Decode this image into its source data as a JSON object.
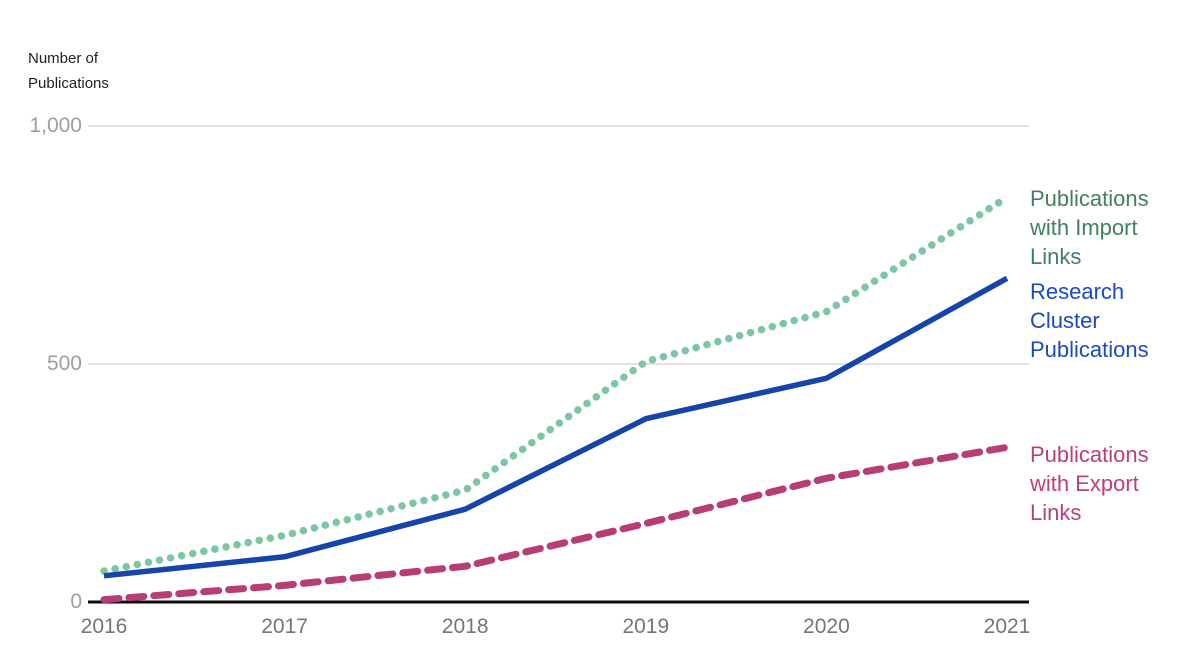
{
  "chart_data": {
    "type": "line",
    "title": "",
    "xlabel": "",
    "ylabel": "Number of Publications",
    "x": [
      "2016",
      "2017",
      "2018",
      "2019",
      "2020",
      "2021"
    ],
    "ylim": [
      0,
      1000
    ],
    "yticks": [
      0,
      500,
      1000
    ],
    "ytick_labels": [
      "0",
      "500",
      "1,000"
    ],
    "grid": "horizontal gridlines at 500 and 1,000; solid black baseline at 0",
    "legend_position": "inline labels at right end of each line",
    "series": [
      {
        "name": "Publications with Import Links",
        "style": "dotted",
        "color": "#7cc7a2",
        "label_color": "#3f8160",
        "values": [
          65,
          140,
          235,
          505,
          610,
          850
        ]
      },
      {
        "name": "Research Cluster Publications",
        "style": "solid",
        "color": "#1544ab",
        "label_color": "#1b49c0",
        "values": [
          55,
          95,
          195,
          385,
          470,
          680
        ]
      },
      {
        "name": "Publications with Export Links",
        "style": "dashed",
        "color": "#b73d76",
        "label_color": "#bc3f79",
        "values": [
          5,
          35,
          75,
          165,
          260,
          325
        ]
      }
    ]
  },
  "colors": {
    "background": "#ffffff",
    "gridline": "#e2e2e2",
    "axis_line": "#0d0d0d",
    "y_tick_text": "#9e9e9e",
    "x_tick_text": "#757575",
    "axis_title_text": "#212121"
  }
}
